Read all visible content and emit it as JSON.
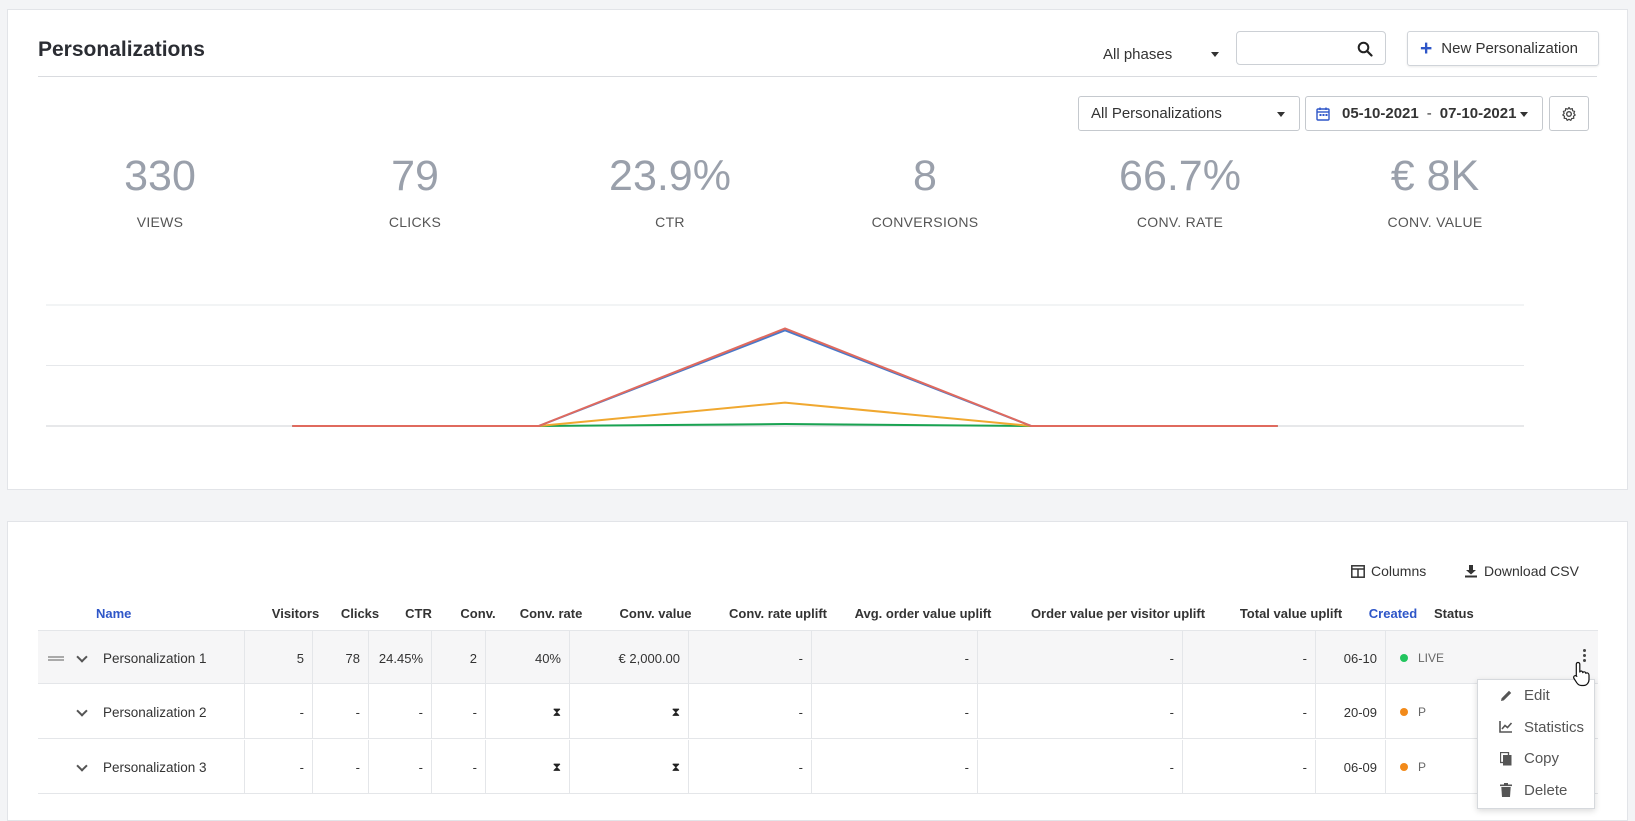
{
  "header": {
    "title": "Personalizations",
    "phase_filter": "All phases",
    "search_placeholder": "",
    "new_button": "New Personalization"
  },
  "filters": {
    "personalization_filter": "All Personalizations",
    "date_from": "05-10-2021",
    "date_separator": "-",
    "date_to": "07-10-2021"
  },
  "kpis": [
    {
      "value": "330",
      "label": "VIEWS"
    },
    {
      "value": "79",
      "label": "CLICKS"
    },
    {
      "value": "23.9%",
      "label": "CTR"
    },
    {
      "value": "8",
      "label": "CONVERSIONS"
    },
    {
      "value": "66.7%",
      "label": "CONV. RATE"
    },
    {
      "value": "€ 8K",
      "label": "CONV. VALUE"
    }
  ],
  "chart_data": {
    "type": "line",
    "x": [
      0,
      1,
      2,
      3,
      4,
      5,
      6
    ],
    "series": [
      {
        "color": "#e06a5e",
        "values": [
          0,
          0,
          0,
          100,
          0,
          0,
          0
        ]
      },
      {
        "color": "#4a78c9",
        "values": [
          0,
          0,
          0,
          98,
          0,
          0,
          0
        ]
      },
      {
        "color": "#f0a830",
        "values": [
          0,
          0,
          0,
          24,
          0,
          0,
          0
        ]
      },
      {
        "color": "#1aa352",
        "values": [
          0,
          0,
          0,
          2,
          0,
          0,
          0
        ]
      }
    ],
    "ylim": [
      0,
      124
    ],
    "grid": true,
    "legend": "none"
  },
  "table_toolbar": {
    "columns_label": "Columns",
    "download_label": "Download CSV"
  },
  "table": {
    "headers": [
      "Name",
      "Visitors",
      "Clicks",
      "CTR",
      "Conv.",
      "Conv. rate",
      "Conv. value",
      "Conv. rate uplift",
      "Avg. order value uplift",
      "Order value per visitor uplift",
      "Total value uplift",
      "Created",
      "Status"
    ],
    "rows": [
      {
        "name": "Personalization 1",
        "visitors": "5",
        "clicks": "78",
        "ctr": "24.45%",
        "conv": "2",
        "conv_rate": "40%",
        "conv_value": "€ 2,000.00",
        "rate_uplift": "-",
        "aov_uplift": "-",
        "ovpv_uplift": "-",
        "total_uplift": "-",
        "created": "06-10",
        "status": "LIVE",
        "status_color": "#22c55e"
      },
      {
        "name": "Personalization 2",
        "visitors": "-",
        "clicks": "-",
        "ctr": "-",
        "conv": "-",
        "conv_rate": "⧗",
        "conv_value": "⧗",
        "rate_uplift": "-",
        "aov_uplift": "-",
        "ovpv_uplift": "-",
        "total_uplift": "-",
        "created": "20-09",
        "status": "P",
        "status_color": "#f28a1a"
      },
      {
        "name": "Personalization 3",
        "visitors": "-",
        "clicks": "-",
        "ctr": "-",
        "conv": "-",
        "conv_rate": "⧗",
        "conv_value": "⧗",
        "rate_uplift": "-",
        "aov_uplift": "-",
        "ovpv_uplift": "-",
        "total_uplift": "-",
        "created": "06-09",
        "status": "P",
        "status_color": "#f28a1a"
      }
    ]
  },
  "context_menu": {
    "items": [
      {
        "label": "Edit",
        "icon": "pencil-icon"
      },
      {
        "label": "Statistics",
        "icon": "chart-icon"
      },
      {
        "label": "Copy",
        "icon": "copy-icon"
      },
      {
        "label": "Delete",
        "icon": "trash-icon"
      }
    ]
  }
}
